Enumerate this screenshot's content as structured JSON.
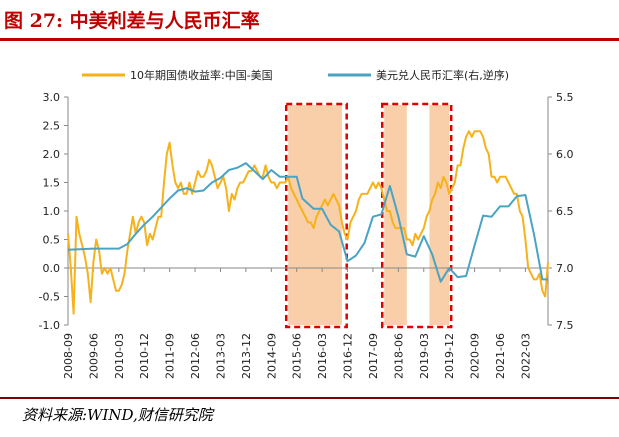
{
  "figure": {
    "title": "图 27:  中美利差与人民币汇率",
    "source": "资料来源:WIND,财信研究院"
  },
  "colors": {
    "title": "#c00000",
    "spread_series": "#f5b21b",
    "fx_series": "#4ba3c3",
    "shade": "#f8cfa8",
    "dashed_box": "#e00000",
    "axis": "#888888"
  },
  "chart_data": {
    "type": "line",
    "legend_position": "top",
    "grid": false,
    "y_left": {
      "min": -1.0,
      "max": 3.0,
      "step": 0.5,
      "tick_labels": [
        "-1.0",
        "-0.5",
        "0.0",
        "0.5",
        "1.0",
        "1.5",
        "2.0",
        "2.5",
        "3.0"
      ]
    },
    "y_right": {
      "min": 5.5,
      "max": 7.5,
      "reversed": true,
      "step": 0.5,
      "tick_labels": [
        "5.5",
        "6.0",
        "6.5",
        "7.0",
        "7.5"
      ]
    },
    "x_ticks": [
      "2008-09",
      "2009-06",
      "2010-03",
      "2010-12",
      "2011-09",
      "2012-06",
      "2013-03",
      "2013-12",
      "2014-09",
      "2015-06",
      "2016-03",
      "2016-12",
      "2017-09",
      "2018-06",
      "2019-03",
      "2019-12",
      "2020-09",
      "2021-06",
      "2022-03"
    ],
    "x_range": [
      "2008-09",
      "2022-11"
    ],
    "series": [
      {
        "name": "10年期国债收益率:中国-美国",
        "axis": "left",
        "points": [
          [
            "2008-09",
            0.6
          ],
          [
            "2008-10",
            0.0
          ],
          [
            "2008-11",
            -0.8
          ],
          [
            "2008-12",
            0.9
          ],
          [
            "2009-01",
            0.6
          ],
          [
            "2009-02",
            0.4
          ],
          [
            "2009-03",
            0.2
          ],
          [
            "2009-04",
            -0.1
          ],
          [
            "2009-05",
            -0.6
          ],
          [
            "2009-06",
            0.1
          ],
          [
            "2009-07",
            0.5
          ],
          [
            "2009-08",
            0.3
          ],
          [
            "2009-09",
            -0.1
          ],
          [
            "2009-10",
            0.0
          ],
          [
            "2009-11",
            -0.1
          ],
          [
            "2009-12",
            0.0
          ],
          [
            "2010-01",
            -0.2
          ],
          [
            "2010-02",
            -0.4
          ],
          [
            "2010-03",
            -0.4
          ],
          [
            "2010-04",
            -0.3
          ],
          [
            "2010-05",
            -0.1
          ],
          [
            "2010-06",
            0.3
          ],
          [
            "2010-07",
            0.6
          ],
          [
            "2010-08",
            0.9
          ],
          [
            "2010-09",
            0.6
          ],
          [
            "2010-10",
            0.8
          ],
          [
            "2010-11",
            0.9
          ],
          [
            "2010-12",
            0.8
          ],
          [
            "2011-01",
            0.4
          ],
          [
            "2011-02",
            0.6
          ],
          [
            "2011-03",
            0.5
          ],
          [
            "2011-04",
            0.7
          ],
          [
            "2011-05",
            0.9
          ],
          [
            "2011-06",
            0.9
          ],
          [
            "2011-07",
            1.5
          ],
          [
            "2011-08",
            2.0
          ],
          [
            "2011-09",
            2.2
          ],
          [
            "2011-10",
            1.8
          ],
          [
            "2011-11",
            1.5
          ],
          [
            "2011-12",
            1.4
          ],
          [
            "2012-01",
            1.5
          ],
          [
            "2012-02",
            1.3
          ],
          [
            "2012-03",
            1.3
          ],
          [
            "2012-04",
            1.5
          ],
          [
            "2012-05",
            1.3
          ],
          [
            "2012-06",
            1.5
          ],
          [
            "2012-07",
            1.7
          ],
          [
            "2012-08",
            1.6
          ],
          [
            "2012-09",
            1.6
          ],
          [
            "2012-10",
            1.7
          ],
          [
            "2012-11",
            1.9
          ],
          [
            "2012-12",
            1.8
          ],
          [
            "2013-01",
            1.6
          ],
          [
            "2013-02",
            1.4
          ],
          [
            "2013-03",
            1.5
          ],
          [
            "2013-04",
            1.6
          ],
          [
            "2013-05",
            1.4
          ],
          [
            "2013-06",
            1.0
          ],
          [
            "2013-07",
            1.3
          ],
          [
            "2013-08",
            1.2
          ],
          [
            "2013-09",
            1.4
          ],
          [
            "2013-10",
            1.5
          ],
          [
            "2013-11",
            1.5
          ],
          [
            "2013-12",
            1.6
          ],
          [
            "2014-01",
            1.7
          ],
          [
            "2014-02",
            1.7
          ],
          [
            "2014-03",
            1.8
          ],
          [
            "2014-04",
            1.7
          ],
          [
            "2014-05",
            1.6
          ],
          [
            "2014-06",
            1.6
          ],
          [
            "2014-07",
            1.8
          ],
          [
            "2014-08",
            1.6
          ],
          [
            "2014-09",
            1.5
          ],
          [
            "2014-10",
            1.5
          ],
          [
            "2014-11",
            1.4
          ],
          [
            "2014-12",
            1.5
          ],
          [
            "2015-01",
            1.5
          ],
          [
            "2015-02",
            1.5
          ],
          [
            "2015-03",
            1.6
          ],
          [
            "2015-04",
            1.4
          ],
          [
            "2015-05",
            1.3
          ],
          [
            "2015-06",
            1.2
          ],
          [
            "2015-07",
            1.1
          ],
          [
            "2015-08",
            1.0
          ],
          [
            "2015-09",
            0.9
          ],
          [
            "2015-10",
            0.8
          ],
          [
            "2015-11",
            0.8
          ],
          [
            "2015-12",
            0.7
          ],
          [
            "2016-01",
            0.9
          ],
          [
            "2016-02",
            1.0
          ],
          [
            "2016-03",
            1.1
          ],
          [
            "2016-04",
            1.2
          ],
          [
            "2016-05",
            1.1
          ],
          [
            "2016-06",
            1.2
          ],
          [
            "2016-07",
            1.3
          ],
          [
            "2016-08",
            1.2
          ],
          [
            "2016-09",
            1.1
          ],
          [
            "2016-10",
            0.8
          ],
          [
            "2016-11",
            0.6
          ],
          [
            "2016-12",
            0.5
          ],
          [
            "2017-01",
            0.8
          ],
          [
            "2017-02",
            0.9
          ],
          [
            "2017-03",
            1.0
          ],
          [
            "2017-04",
            1.2
          ],
          [
            "2017-05",
            1.3
          ],
          [
            "2017-06",
            1.3
          ],
          [
            "2017-07",
            1.3
          ],
          [
            "2017-08",
            1.4
          ],
          [
            "2017-09",
            1.5
          ],
          [
            "2017-10",
            1.4
          ],
          [
            "2017-11",
            1.5
          ],
          [
            "2017-12",
            1.4
          ],
          [
            "2018-01",
            1.2
          ],
          [
            "2018-02",
            1.0
          ],
          [
            "2018-03",
            1.0
          ],
          [
            "2018-04",
            0.8
          ],
          [
            "2018-05",
            0.7
          ],
          [
            "2018-06",
            0.7
          ],
          [
            "2018-07",
            0.7
          ],
          [
            "2018-08",
            0.7
          ],
          [
            "2018-09",
            0.5
          ],
          [
            "2018-10",
            0.5
          ],
          [
            "2018-11",
            0.4
          ],
          [
            "2018-12",
            0.6
          ],
          [
            "2019-01",
            0.5
          ],
          [
            "2019-02",
            0.6
          ],
          [
            "2019-03",
            0.7
          ],
          [
            "2019-04",
            0.9
          ],
          [
            "2019-05",
            1.0
          ],
          [
            "2019-06",
            1.2
          ],
          [
            "2019-07",
            1.3
          ],
          [
            "2019-08",
            1.5
          ],
          [
            "2019-09",
            1.4
          ],
          [
            "2019-10",
            1.6
          ],
          [
            "2019-11",
            1.5
          ],
          [
            "2019-12",
            1.3
          ],
          [
            "2020-01",
            1.4
          ],
          [
            "2020-02",
            1.5
          ],
          [
            "2020-03",
            1.8
          ],
          [
            "2020-04",
            1.8
          ],
          [
            "2020-05",
            2.1
          ],
          [
            "2020-06",
            2.3
          ],
          [
            "2020-07",
            2.4
          ],
          [
            "2020-08",
            2.3
          ],
          [
            "2020-09",
            2.4
          ],
          [
            "2020-10",
            2.4
          ],
          [
            "2020-11",
            2.4
          ],
          [
            "2020-12",
            2.3
          ],
          [
            "2021-01",
            2.1
          ],
          [
            "2021-02",
            2.0
          ],
          [
            "2021-03",
            1.6
          ],
          [
            "2021-04",
            1.6
          ],
          [
            "2021-05",
            1.5
          ],
          [
            "2021-06",
            1.6
          ],
          [
            "2021-07",
            1.6
          ],
          [
            "2021-08",
            1.6
          ],
          [
            "2021-09",
            1.5
          ],
          [
            "2021-10",
            1.4
          ],
          [
            "2021-11",
            1.3
          ],
          [
            "2021-12",
            1.3
          ],
          [
            "2022-01",
            1.0
          ],
          [
            "2022-02",
            0.9
          ],
          [
            "2022-03",
            0.5
          ],
          [
            "2022-04",
            0.0
          ],
          [
            "2022-05",
            -0.1
          ],
          [
            "2022-06",
            -0.2
          ],
          [
            "2022-07",
            -0.2
          ],
          [
            "2022-08",
            -0.1
          ],
          [
            "2022-09",
            -0.4
          ],
          [
            "2022-10",
            -0.5
          ],
          [
            "2022-11",
            0.1
          ]
        ]
      },
      {
        "name": "美元兑人民币汇率(右,逆序)",
        "axis": "right",
        "reversed": true,
        "points": [
          [
            "2008-09",
            6.84
          ],
          [
            "2009-06",
            6.83
          ],
          [
            "2010-03",
            6.83
          ],
          [
            "2010-06",
            6.79
          ],
          [
            "2010-09",
            6.7
          ],
          [
            "2010-12",
            6.62
          ],
          [
            "2011-03",
            6.55
          ],
          [
            "2011-06",
            6.47
          ],
          [
            "2011-09",
            6.39
          ],
          [
            "2011-12",
            6.32
          ],
          [
            "2012-03",
            6.3
          ],
          [
            "2012-06",
            6.33
          ],
          [
            "2012-09",
            6.32
          ],
          [
            "2012-12",
            6.25
          ],
          [
            "2013-03",
            6.21
          ],
          [
            "2013-06",
            6.14
          ],
          [
            "2013-09",
            6.12
          ],
          [
            "2013-12",
            6.08
          ],
          [
            "2014-03",
            6.15
          ],
          [
            "2014-06",
            6.22
          ],
          [
            "2014-09",
            6.14
          ],
          [
            "2014-12",
            6.2
          ],
          [
            "2015-03",
            6.2
          ],
          [
            "2015-06",
            6.2
          ],
          [
            "2015-08",
            6.39
          ],
          [
            "2015-12",
            6.48
          ],
          [
            "2016-03",
            6.48
          ],
          [
            "2016-06",
            6.62
          ],
          [
            "2016-09",
            6.68
          ],
          [
            "2016-12",
            6.94
          ],
          [
            "2017-03",
            6.89
          ],
          [
            "2017-06",
            6.78
          ],
          [
            "2017-09",
            6.55
          ],
          [
            "2017-12",
            6.53
          ],
          [
            "2018-03",
            6.28
          ],
          [
            "2018-06",
            6.55
          ],
          [
            "2018-09",
            6.88
          ],
          [
            "2018-12",
            6.9
          ],
          [
            "2019-03",
            6.72
          ],
          [
            "2019-06",
            6.88
          ],
          [
            "2019-09",
            7.12
          ],
          [
            "2019-12",
            7.0
          ],
          [
            "2020-03",
            7.08
          ],
          [
            "2020-06",
            7.07
          ],
          [
            "2020-09",
            6.8
          ],
          [
            "2020-12",
            6.54
          ],
          [
            "2021-03",
            6.55
          ],
          [
            "2021-06",
            6.46
          ],
          [
            "2021-09",
            6.46
          ],
          [
            "2021-12",
            6.37
          ],
          [
            "2022-03",
            6.36
          ],
          [
            "2022-06",
            6.7
          ],
          [
            "2022-09",
            7.1
          ],
          [
            "2022-11",
            7.1
          ]
        ]
      }
    ],
    "shaded_periods": [
      {
        "start": "2015-03",
        "end": "2016-10"
      },
      {
        "start": "2018-01",
        "end": "2018-09"
      },
      {
        "start": "2019-05",
        "end": "2019-12"
      }
    ],
    "highlight_boxes": [
      {
        "start": "2015-03",
        "end": "2016-11"
      },
      {
        "start": "2018-01",
        "end": "2019-12"
      }
    ]
  }
}
